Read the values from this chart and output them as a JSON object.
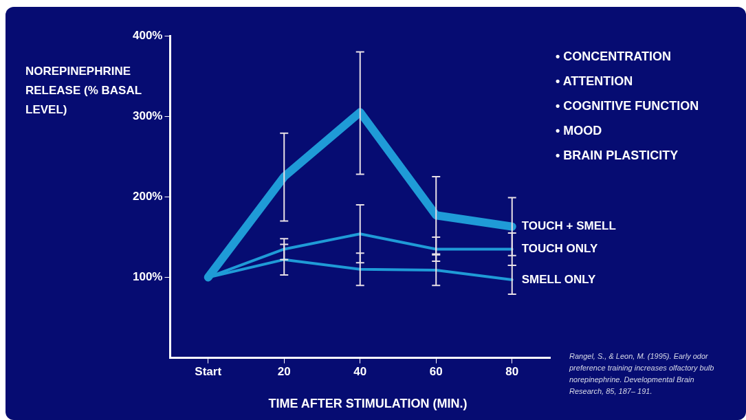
{
  "chart_data": {
    "type": "line",
    "ylabel": "NOREPINEPHRINE RELEASE (% BASAL LEVEL)",
    "xlabel": "TIME AFTER STIMULATION (MIN.)",
    "categories": [
      "Start",
      "20",
      "40",
      "60",
      "80"
    ],
    "series": [
      {
        "name": "TOUCH + SMELL",
        "color": "#1f9bd7",
        "values": [
          100,
          225,
          305,
          177,
          163
        ],
        "errors": [
          null,
          [
            170,
            279
          ],
          [
            228,
            380
          ],
          48,
          36
        ]
      },
      {
        "name": "TOUCH ONLY",
        "color": "#1f9bd7",
        "values": [
          100,
          135,
          154,
          135,
          135
        ],
        "errors": [
          null,
          13,
          36,
          15,
          20
        ]
      },
      {
        "name": "SMELL ONLY",
        "color": "#1f9bd7",
        "values": [
          100,
          122,
          110,
          109,
          97
        ],
        "errors": [
          null,
          19,
          20,
          19,
          18
        ]
      }
    ],
    "ylim": [
      0,
      400
    ],
    "yticks": [
      {
        "value": 100,
        "label": "100%"
      },
      {
        "value": 200,
        "label": "200%"
      },
      {
        "value": 300,
        "label": "300%"
      },
      {
        "value": 400,
        "label": "400%"
      }
    ],
    "grid": false,
    "legend": false,
    "marker": "none",
    "line_style": "solid",
    "annotations": [
      "• CONCENTRATION",
      "• ATTENTION",
      "• COGNITIVE FUNCTION",
      "• MOOD",
      "• BRAIN PLASTICITY",
      "Rangel, S., & Leon, M. (1995). Early odor preference training increases olfactory bulb norepinephrine. Developmental Brain Research, 85, 187– 191."
    ]
  }
}
